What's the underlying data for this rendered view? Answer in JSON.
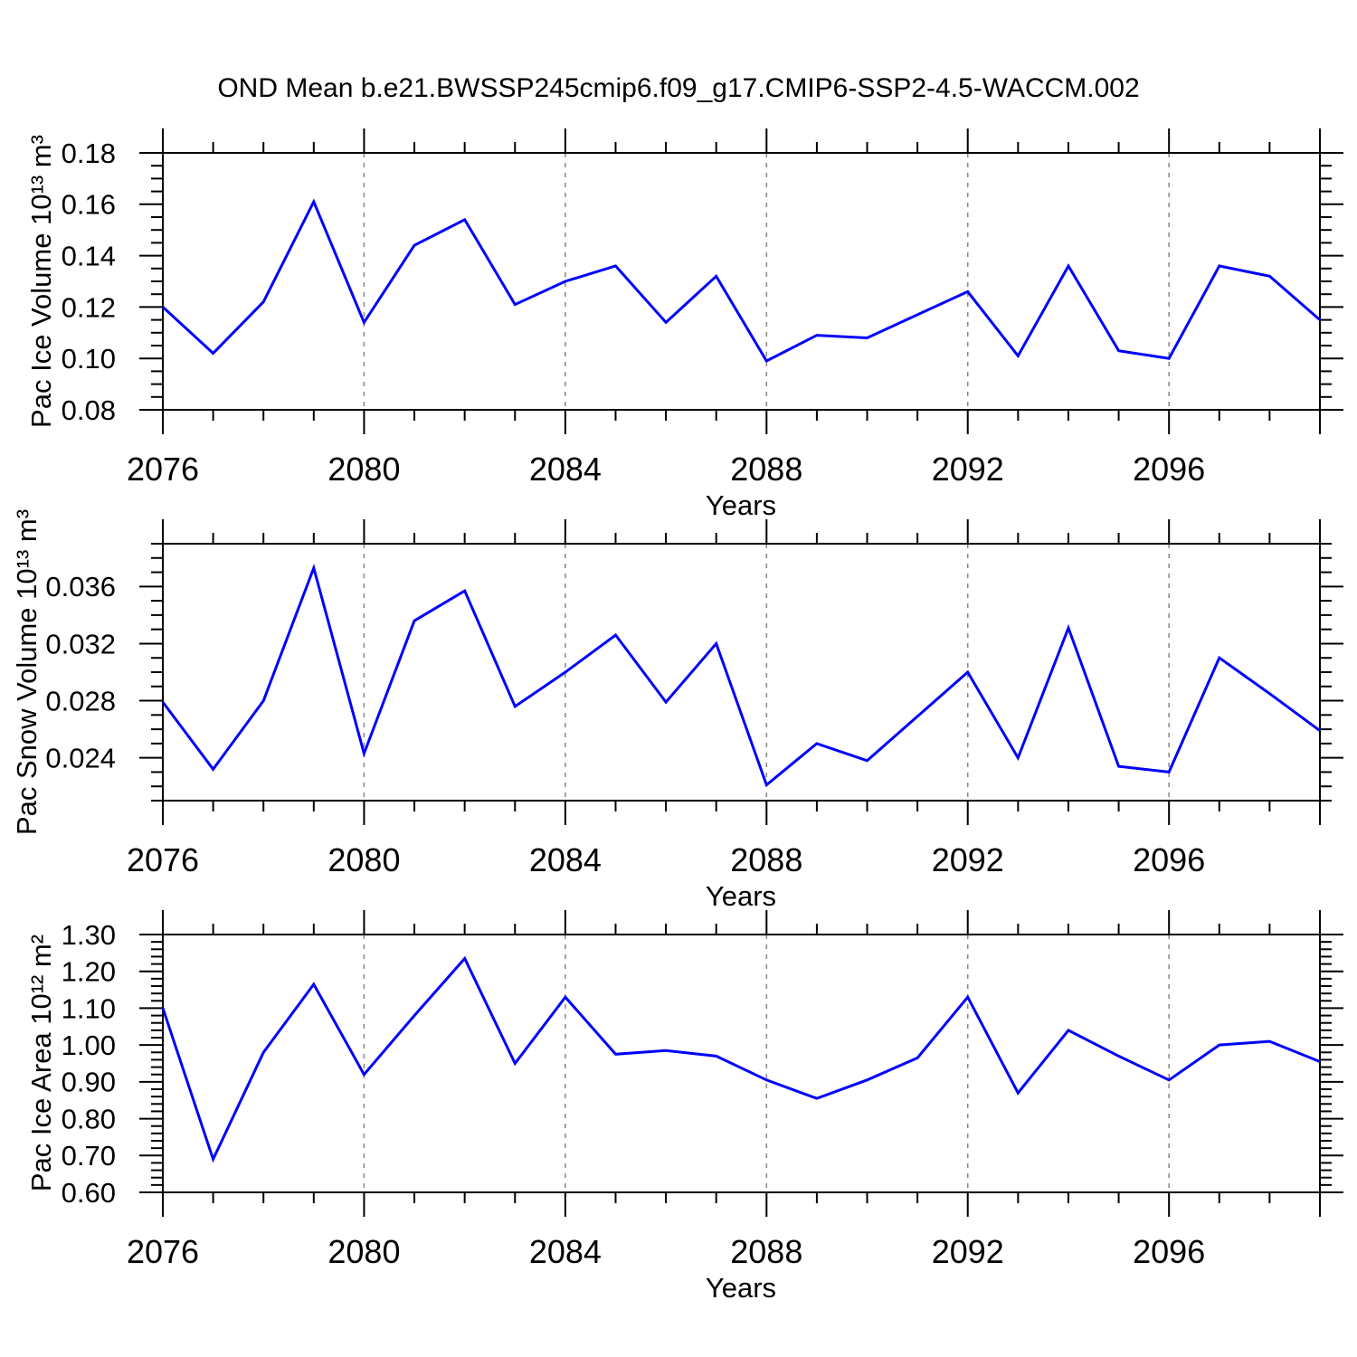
{
  "title": "OND Mean b.e21.BWSSP245cmip6.f09_g17.CMIP6-SSP2-4.5-WACCM.002",
  "colors": {
    "series": "#0000ff",
    "grid": "#878787",
    "frame": "#000000",
    "background": "#ffffff"
  },
  "chart_data": [
    {
      "type": "line",
      "ylabel": "Pac Ice Volume 10¹³ m³",
      "xlabel": "Years",
      "xlim": [
        2076,
        2099
      ],
      "ylim": [
        0.08,
        0.18
      ],
      "x": [
        2076,
        2077,
        2078,
        2079,
        2080,
        2081,
        2082,
        2083,
        2084,
        2085,
        2086,
        2087,
        2088,
        2089,
        2090,
        2091,
        2092,
        2093,
        2094,
        2095,
        2096,
        2097,
        2098,
        2099
      ],
      "values": [
        0.12,
        0.102,
        0.122,
        0.161,
        0.114,
        0.144,
        0.154,
        0.121,
        0.13,
        0.136,
        0.114,
        0.132,
        0.099,
        0.109,
        0.108,
        0.117,
        0.126,
        0.101,
        0.136,
        0.103,
        0.1,
        0.136,
        0.132,
        0.115
      ],
      "ytick_values": [
        0.18,
        0.16,
        0.14,
        0.12,
        0.1,
        0.08
      ],
      "ytick_labels": [
        "0.18",
        "0.16",
        "0.14",
        "0.12",
        "0.10",
        "0.08"
      ],
      "ytick_major": 0.02,
      "ytick_minor": 0.005,
      "xtick_values": [
        2076,
        2080,
        2084,
        2088,
        2092,
        2096
      ],
      "xtick_labels": [
        "2076",
        "2080",
        "2084",
        "2088",
        "2092",
        "2096"
      ],
      "xtick_minor_step": 1,
      "xgrid": [
        2080,
        2084,
        2088,
        2092,
        2096
      ],
      "grid_on": true,
      "legend": "none"
    },
    {
      "type": "line",
      "ylabel": "Pac Snow Volume 10¹³ m³",
      "xlabel": "Years",
      "xlim": [
        2076,
        2099
      ],
      "ylim": [
        0.021,
        0.039
      ],
      "x": [
        2076,
        2077,
        2078,
        2079,
        2080,
        2081,
        2082,
        2083,
        2084,
        2085,
        2086,
        2087,
        2088,
        2089,
        2090,
        2091,
        2092,
        2093,
        2094,
        2095,
        2096,
        2097,
        2098,
        2099
      ],
      "values": [
        0.0279,
        0.0232,
        0.028,
        0.0373,
        0.0243,
        0.0336,
        0.0357,
        0.0276,
        0.03,
        0.0326,
        0.0279,
        0.032,
        0.0221,
        0.025,
        0.0238,
        0.0269,
        0.03,
        0.024,
        0.0331,
        0.0234,
        0.023,
        0.031,
        0.0285,
        0.0259
      ],
      "ytick_values": [
        0.036,
        0.032,
        0.028,
        0.024
      ],
      "ytick_labels": [
        "0.036",
        "0.032",
        "0.028",
        "0.024"
      ],
      "ytick_major": 0.004,
      "ytick_minor": 0.001,
      "xtick_values": [
        2076,
        2080,
        2084,
        2088,
        2092,
        2096
      ],
      "xtick_labels": [
        "2076",
        "2080",
        "2084",
        "2088",
        "2092",
        "2096"
      ],
      "xtick_minor_step": 1,
      "xgrid": [
        2080,
        2084,
        2088,
        2092,
        2096
      ],
      "grid_on": true,
      "legend": "none"
    },
    {
      "type": "line",
      "ylabel": "Pac Ice Area 10¹² m²",
      "xlabel": "Years",
      "xlim": [
        2076,
        2099
      ],
      "ylim": [
        0.6,
        1.3
      ],
      "x": [
        2076,
        2077,
        2078,
        2079,
        2080,
        2081,
        2082,
        2083,
        2084,
        2085,
        2086,
        2087,
        2088,
        2089,
        2090,
        2091,
        2092,
        2093,
        2094,
        2095,
        2096,
        2097,
        2098,
        2099
      ],
      "values": [
        1.1,
        0.69,
        0.98,
        1.165,
        0.92,
        1.08,
        1.235,
        0.95,
        1.13,
        0.975,
        0.985,
        0.97,
        0.905,
        0.855,
        0.905,
        0.965,
        1.13,
        0.87,
        1.04,
        0.97,
        0.905,
        1.0,
        1.01,
        0.955
      ],
      "ytick_values": [
        1.3,
        1.2,
        1.1,
        1.0,
        0.9,
        0.8,
        0.7,
        0.6
      ],
      "ytick_labels": [
        "1.30",
        "1.20",
        "1.10",
        "1.00",
        "0.90",
        "0.80",
        "0.70",
        "0.60"
      ],
      "ytick_major": 0.1,
      "ytick_minor": 0.02,
      "xtick_values": [
        2076,
        2080,
        2084,
        2088,
        2092,
        2096
      ],
      "xtick_labels": [
        "2076",
        "2080",
        "2084",
        "2088",
        "2092",
        "2096"
      ],
      "xtick_minor_step": 1,
      "xgrid": [
        2080,
        2084,
        2088,
        2092,
        2096
      ],
      "grid_on": true,
      "legend": "none"
    }
  ]
}
